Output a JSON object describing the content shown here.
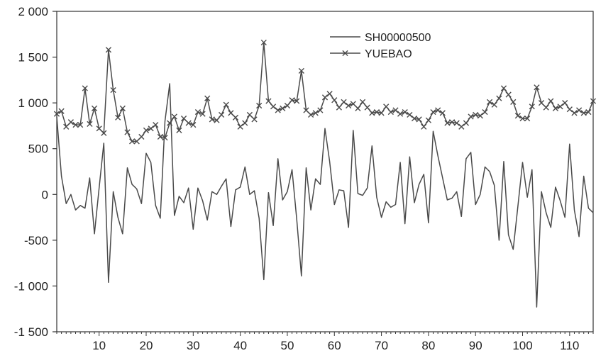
{
  "chart_data": {
    "type": "line",
    "title": "",
    "xlabel": "",
    "ylabel": "",
    "xlim": [
      1,
      115
    ],
    "ylim": [
      -1500,
      2000
    ],
    "grid": false,
    "legend_position": "top-right",
    "x_ticks": [
      10,
      20,
      30,
      40,
      50,
      60,
      70,
      80,
      90,
      100,
      110
    ],
    "x_tick_labels": [
      "10",
      "20",
      "30",
      "40",
      "50",
      "60",
      "70",
      "80",
      "90",
      "100",
      "110"
    ],
    "y_ticks": [
      -1500,
      -1000,
      -500,
      0,
      500,
      1000,
      1500,
      2000
    ],
    "y_tick_labels": [
      "-1 500",
      "-1 000",
      "-500",
      "0",
      "500",
      "1 000",
      "1 500",
      "2 000"
    ],
    "colors": {
      "line": "#4a4a4a",
      "axis": "#333333",
      "background": "#ffffff"
    },
    "series": [
      {
        "name": "SH00000500",
        "marker": "none",
        "x": [
          1,
          2,
          3,
          4,
          5,
          6,
          7,
          8,
          9,
          10,
          11,
          12,
          13,
          14,
          15,
          16,
          17,
          18,
          19,
          20,
          21,
          22,
          23,
          24,
          25,
          26,
          27,
          28,
          29,
          30,
          31,
          32,
          33,
          34,
          35,
          36,
          37,
          38,
          39,
          40,
          41,
          42,
          43,
          44,
          45,
          46,
          47,
          48,
          49,
          50,
          51,
          52,
          53,
          54,
          55,
          56,
          57,
          58,
          59,
          60,
          61,
          62,
          63,
          64,
          65,
          66,
          67,
          68,
          69,
          70,
          71,
          72,
          73,
          74,
          75,
          76,
          77,
          78,
          79,
          80,
          81,
          82,
          83,
          84,
          85,
          86,
          87,
          88,
          89,
          90,
          91,
          92,
          93,
          94,
          95,
          96,
          97,
          98,
          99,
          100,
          101,
          102,
          103,
          104,
          105,
          106,
          107,
          108,
          109,
          110,
          111,
          112,
          113,
          114,
          115
        ],
        "values": [
          850,
          200,
          -100,
          0,
          -170,
          -120,
          -150,
          180,
          -430,
          70,
          560,
          -960,
          30,
          -250,
          -430,
          290,
          110,
          60,
          -100,
          450,
          350,
          -120,
          -260,
          800,
          1210,
          -230,
          -20,
          -90,
          70,
          -380,
          70,
          -70,
          -280,
          30,
          0,
          90,
          170,
          -350,
          50,
          80,
          300,
          0,
          40,
          -260,
          -930,
          20,
          -340,
          390,
          -60,
          30,
          270,
          -270,
          -890,
          290,
          -170,
          170,
          110,
          720,
          360,
          -110,
          50,
          40,
          -360,
          700,
          10,
          -10,
          70,
          530,
          -30,
          -250,
          -80,
          -140,
          -110,
          350,
          -320,
          410,
          -90,
          110,
          220,
          -310,
          690,
          420,
          180,
          -60,
          -40,
          30,
          -240,
          390,
          460,
          -110,
          0,
          300,
          250,
          100,
          -500,
          360,
          -440,
          -600,
          -130,
          350,
          -30,
          270,
          -1230,
          30,
          -200,
          -360,
          80,
          -70,
          -250,
          550,
          -170,
          -460,
          200,
          -150,
          -200
        ]
      },
      {
        "name": "YUEBAO",
        "marker": "x",
        "x": [
          1,
          2,
          3,
          4,
          5,
          6,
          7,
          8,
          9,
          10,
          11,
          12,
          13,
          14,
          15,
          16,
          17,
          18,
          19,
          20,
          21,
          22,
          23,
          24,
          25,
          26,
          27,
          28,
          29,
          30,
          31,
          32,
          33,
          34,
          35,
          36,
          37,
          38,
          39,
          40,
          41,
          42,
          43,
          44,
          45,
          46,
          47,
          48,
          49,
          50,
          51,
          52,
          53,
          54,
          55,
          56,
          57,
          58,
          59,
          60,
          61,
          62,
          63,
          64,
          65,
          66,
          67,
          68,
          69,
          70,
          71,
          72,
          73,
          74,
          75,
          76,
          77,
          78,
          79,
          80,
          81,
          82,
          83,
          84,
          85,
          86,
          87,
          88,
          89,
          90,
          91,
          92,
          93,
          94,
          95,
          96,
          97,
          98,
          99,
          100,
          101,
          102,
          103,
          104,
          105,
          106,
          107,
          108,
          109,
          110,
          111,
          112,
          113,
          114,
          115
        ],
        "values": [
          880,
          910,
          740,
          790,
          760,
          760,
          1160,
          770,
          940,
          720,
          670,
          1580,
          1140,
          840,
          940,
          680,
          580,
          580,
          630,
          700,
          720,
          760,
          630,
          620,
          780,
          850,
          700,
          830,
          780,
          760,
          900,
          880,
          1050,
          820,
          810,
          870,
          980,
          890,
          840,
          740,
          780,
          870,
          820,
          970,
          1660,
          1020,
          960,
          920,
          940,
          970,
          1030,
          1020,
          1350,
          920,
          870,
          890,
          920,
          1060,
          1100,
          1030,
          950,
          1010,
          970,
          990,
          940,
          1010,
          950,
          890,
          900,
          890,
          960,
          900,
          920,
          880,
          900,
          870,
          830,
          820,
          740,
          810,
          900,
          920,
          890,
          780,
          790,
          780,
          740,
          780,
          850,
          870,
          860,
          900,
          1010,
          980,
          1050,
          1160,
          1090,
          1010,
          860,
          830,
          830,
          960,
          1170,
          1000,
          950,
          1020,
          940,
          960,
          1000,
          930,
          890,
          920,
          890,
          900,
          1020
        ]
      }
    ]
  }
}
